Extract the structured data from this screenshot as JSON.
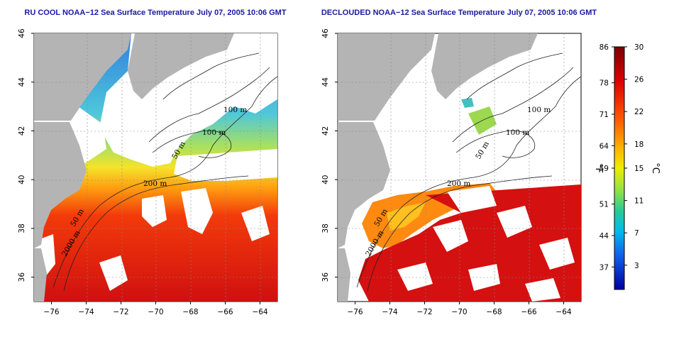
{
  "panels": [
    {
      "title": "RU COOL NOAA−12 Sea Surface Temperature July 07, 2005 10:06 GMT",
      "variant": "full",
      "bathymetry_labels": [
        "100 m",
        "100 m",
        "50 m",
        "200 m",
        "50 m",
        "2000 m"
      ]
    },
    {
      "title": "DECLOUDED NOAA−12 Sea Surface Temperature July 07, 2005 10:06 GMT",
      "variant": "declouded",
      "bathymetry_labels": [
        "100 m",
        "100 m",
        "50 m",
        "200 m",
        "50 m",
        "2000 m"
      ]
    }
  ],
  "map_extent": {
    "lon": [
      -77,
      -63
    ],
    "lat": [
      35,
      46
    ]
  },
  "x_ticks": [
    "−76",
    "−74",
    "−72",
    "−70",
    "−68",
    "−66",
    "−64"
  ],
  "x_tick_values": [
    -76,
    -74,
    -72,
    -70,
    -68,
    -66,
    -64
  ],
  "y_ticks": [
    "46",
    "44",
    "42",
    "40",
    "38",
    "36"
  ],
  "y_tick_values": [
    46,
    44,
    42,
    40,
    38,
    36
  ],
  "colorbar": {
    "fahrenheit_ticks": [
      "86",
      "78",
      "71",
      "64",
      "59",
      "51",
      "44",
      "37"
    ],
    "celsius_ticks": [
      "30",
      "26",
      "22",
      "18",
      "15",
      "11",
      "7",
      "3"
    ],
    "left_unit": "°F",
    "right_unit": "°C",
    "celsius_range": [
      0,
      30
    ]
  },
  "colors": {
    "land": "#b4b4b4",
    "cloud": "#ffffff",
    "warm": "#cc0000",
    "cool": "#0000bb",
    "title": "#1a1aa0"
  }
}
